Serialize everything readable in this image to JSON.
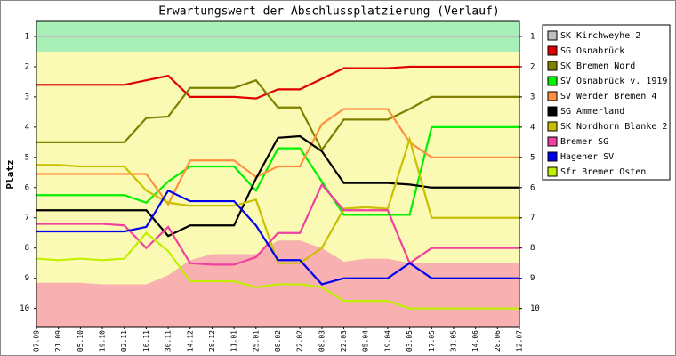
{
  "chart_data": {
    "type": "line",
    "title": "Erwartungswert der Abschlussplatzierung (Verlauf)",
    "y_label": "Platz",
    "categories": [
      "07.09",
      "21.09",
      "05.10",
      "19.10",
      "02.11",
      "16.11",
      "30.11",
      "14.12",
      "28.12",
      "11.01",
      "25.01",
      "08.02",
      "22.02",
      "08.03",
      "22.03",
      "05.04",
      "19.04",
      "03.05",
      "17.05",
      "31.05",
      "14.06",
      "28.06",
      "12.07"
    ],
    "ylim": [
      0.5,
      10.6
    ],
    "yticks": [
      1,
      2,
      3,
      4,
      5,
      6,
      7,
      8,
      9,
      10
    ],
    "y_reversed": true,
    "grid": false,
    "legend": "right",
    "promotion_limit": 1.5,
    "promotion_color": "#a8f0b8",
    "middle_color": "#fafab4",
    "relegation_color": "#f8b0b0",
    "relegation_limit": [
      9.15,
      9.15,
      9.15,
      9.2,
      9.2,
      9.2,
      8.9,
      8.4,
      8.2,
      8.2,
      8.2,
      7.75,
      7.75,
      8.0,
      8.45,
      8.35,
      8.35,
      8.5,
      8.5,
      8.5,
      8.5,
      8.5,
      8.5
    ],
    "series": [
      {
        "name": "SK Kirchweyhe 2",
        "color": "#c0c0c0",
        "values": [
          1,
          1,
          1,
          1,
          1,
          1,
          1,
          1,
          1,
          1,
          1,
          1,
          1,
          1,
          1,
          1,
          1,
          1,
          1,
          1,
          1,
          1,
          1
        ]
      },
      {
        "name": "SG Osnabrück",
        "color": "#e00000",
        "values": [
          2.6,
          2.6,
          2.6,
          2.6,
          2.6,
          2.45,
          2.3,
          3.0,
          3.0,
          3.0,
          3.05,
          2.75,
          2.75,
          2.4,
          2.05,
          2.05,
          2.05,
          2.0,
          2.0,
          2.0,
          2.0,
          2.0,
          2.0
        ]
      },
      {
        "name": "SK Bremen Nord",
        "color": "#808000",
        "values": [
          4.5,
          4.5,
          4.5,
          4.5,
          4.5,
          3.7,
          3.65,
          2.7,
          2.7,
          2.7,
          2.45,
          3.35,
          3.35,
          4.75,
          3.75,
          3.75,
          3.75,
          3.4,
          3.0,
          3.0,
          3.0,
          3.0,
          3.0
        ]
      },
      {
        "name": "SV Osnabrück v. 1919",
        "color": "#00f000",
        "values": [
          6.25,
          6.25,
          6.25,
          6.25,
          6.25,
          6.5,
          5.8,
          5.3,
          5.3,
          5.3,
          6.1,
          4.7,
          4.7,
          5.8,
          6.9,
          6.9,
          6.9,
          6.9,
          4.0,
          4.0,
          4.0,
          4.0,
          4.0
        ]
      },
      {
        "name": "SV Werder Bremen 4",
        "color": "#ff9040",
        "values": [
          5.55,
          5.55,
          5.55,
          5.55,
          5.55,
          5.55,
          6.55,
          5.1,
          5.1,
          5.1,
          5.65,
          5.3,
          5.3,
          3.9,
          3.4,
          3.4,
          3.4,
          4.5,
          5.0,
          5.0,
          5.0,
          5.0,
          5.0
        ]
      },
      {
        "name": "SG Ammerland",
        "color": "#000000",
        "values": [
          6.75,
          6.75,
          6.75,
          6.75,
          6.75,
          6.75,
          7.6,
          7.25,
          7.25,
          7.25,
          5.7,
          4.35,
          4.3,
          4.8,
          5.85,
          5.85,
          5.85,
          5.9,
          6.0,
          6.0,
          6.0,
          6.0,
          6.0
        ]
      },
      {
        "name": "SK Nordhorn Blanke 2",
        "color": "#c8c000",
        "values": [
          5.25,
          5.25,
          5.3,
          5.3,
          5.3,
          6.1,
          6.5,
          6.6,
          6.6,
          6.6,
          6.4,
          8.5,
          8.5,
          8.0,
          6.7,
          6.65,
          6.7,
          4.4,
          7.0,
          7.0,
          7.0,
          7.0,
          7.0
        ]
      },
      {
        "name": "Bremer SG",
        "color": "#f040a0",
        "values": [
          7.2,
          7.2,
          7.2,
          7.2,
          7.25,
          8.0,
          7.3,
          8.5,
          8.55,
          8.55,
          8.3,
          7.5,
          7.5,
          5.9,
          6.75,
          6.75,
          6.75,
          8.5,
          8.0,
          8.0,
          8.0,
          8.0,
          8.0
        ]
      },
      {
        "name": "Hagener SV",
        "color": "#0000f0",
        "values": [
          7.45,
          7.45,
          7.45,
          7.45,
          7.45,
          7.3,
          6.1,
          6.45,
          6.45,
          6.45,
          7.25,
          8.4,
          8.4,
          9.2,
          9.0,
          9.0,
          9.0,
          8.5,
          9.0,
          9.0,
          9.0,
          9.0,
          9.0
        ]
      },
      {
        "name": "Sfr Bremer Osten",
        "color": "#c0f000",
        "values": [
          8.35,
          8.4,
          8.35,
          8.4,
          8.35,
          7.5,
          8.1,
          9.1,
          9.1,
          9.1,
          9.3,
          9.2,
          9.2,
          9.3,
          9.75,
          9.75,
          9.75,
          10,
          10,
          10,
          10,
          10,
          10
        ]
      }
    ]
  }
}
